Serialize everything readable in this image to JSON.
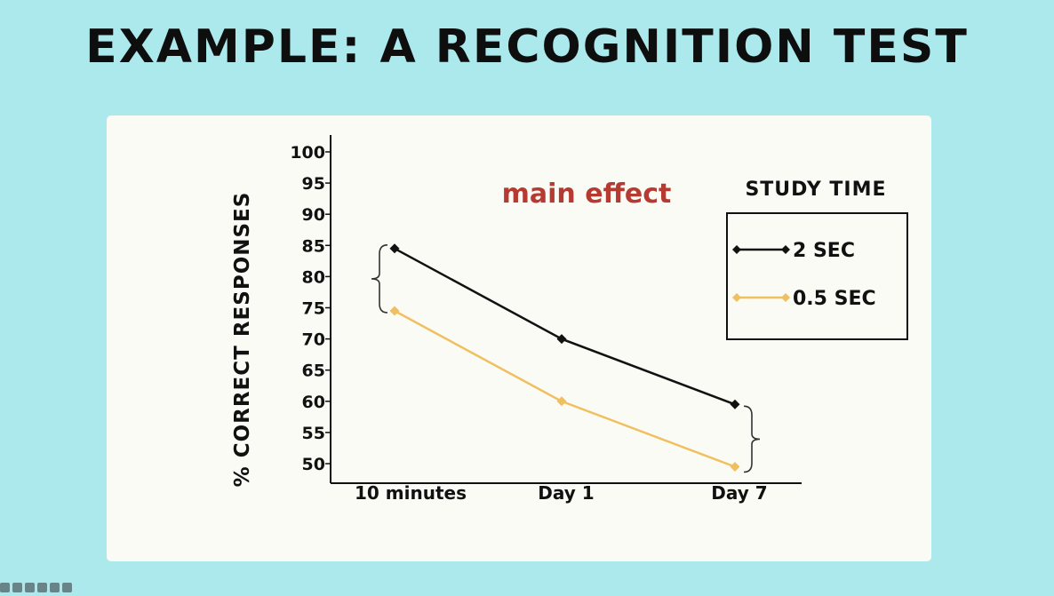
{
  "slide": {
    "title": "EXAMPLE: A RECOGNITION TEST",
    "background": "#abe9ed",
    "card_background": "#fbfbf5"
  },
  "chart_data": {
    "type": "line",
    "categories": [
      "10 minutes",
      "Day 1",
      "Day 7"
    ],
    "ylabel": "% CORRECT RESPONSES",
    "xlabel": "",
    "ylim": [
      50,
      100
    ],
    "yticks": [
      50,
      55,
      60,
      65,
      70,
      75,
      80,
      85,
      90,
      95,
      100
    ],
    "annotation": "main effect",
    "annotation_color": "#b53a32",
    "legend": {
      "title": "STUDY TIME",
      "position": "top-right"
    },
    "series": [
      {
        "name": "2 SEC",
        "values": [
          84.5,
          70,
          59.5
        ],
        "color": "#111111",
        "marker": "diamond"
      },
      {
        "name": "0.5 SEC",
        "values": [
          74.5,
          60,
          49.5
        ],
        "color": "#f0c060",
        "marker": "diamond"
      }
    ]
  },
  "player_controls": {
    "icons": [
      "back-icon",
      "pen-icon",
      "zoom-icon",
      "slides-icon",
      "menu-icon",
      "more-icon"
    ]
  }
}
